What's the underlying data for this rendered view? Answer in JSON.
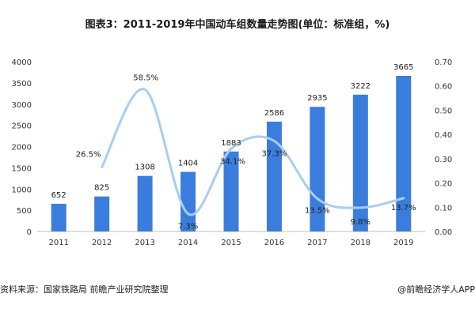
{
  "chart_data": {
    "type": "bar",
    "title": "图表3：2011-2019年中国动车组数量走势图(单位：标准组，%)",
    "categories": [
      "2011",
      "2012",
      "2013",
      "2014",
      "2015",
      "2016",
      "2017",
      "2018",
      "2019"
    ],
    "series": [
      {
        "name": "",
        "type": "bar",
        "axis": "left",
        "values": [
          652,
          825,
          1308,
          1404,
          1883,
          2586,
          2935,
          3222,
          3665
        ],
        "labels": [
          "652",
          "825",
          "1308",
          "1404",
          "1883",
          "2586",
          "2935",
          "3222",
          "3665"
        ]
      },
      {
        "name": "",
        "type": "line",
        "axis": "right",
        "smooth": true,
        "values": [
          null,
          0.265,
          0.585,
          0.073,
          0.341,
          0.373,
          0.135,
          0.098,
          0.137
        ],
        "labels": [
          "",
          "26.5%",
          "58.5%",
          "7.3%",
          "34.1%",
          "37.3%",
          "13.5%",
          "9.8%",
          "13.7%"
        ]
      }
    ],
    "ylim": [
      0,
      4000
    ],
    "yticks": [
      "0",
      "500",
      "1000",
      "1500",
      "2000",
      "2500",
      "3000",
      "3500",
      "4000"
    ],
    "y2lim": [
      0,
      0.7
    ],
    "y2ticks": [
      "0.00",
      "0.10",
      "0.20",
      "0.30",
      "0.40",
      "0.50",
      "0.60",
      "0.70"
    ],
    "grid": false,
    "colors": {
      "bar": "#3b7ddd",
      "line": "#a8cdf1"
    }
  },
  "source": "资料来源：国家铁路局 前瞻产业研究院整理",
  "credit": "@前瞻经济学人APP"
}
